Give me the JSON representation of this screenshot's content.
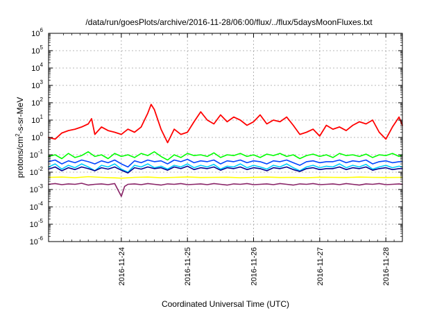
{
  "chart_data": {
    "type": "line",
    "title": "/data/run/goesPlots/archive/2016-11-28/06:00/flux/../flux/5daysMoonFluxes.txt",
    "xlabel": "Coordinated Universal Time (UTC)",
    "ylabel_main": "protons/cm",
    "ylabel_sup": "2",
    "ylabel_tail": "-s-sr-MeV",
    "x_tick_labels": [
      "2016-11-24",
      "2016-11-25",
      "2016-11-26",
      "2016-11-27",
      "2016-11-28"
    ],
    "x_range_days": [
      -1.1,
      4.25
    ],
    "y_scale": "log",
    "y_range": [
      1e-06,
      1000000.0
    ],
    "y_tick_base": "10",
    "y_tick_exponents": [
      "-6",
      "-5",
      "-4",
      "-3",
      "-2",
      "-1",
      "0",
      "1",
      "2",
      "3",
      "4",
      "5",
      "6"
    ],
    "grid": true,
    "series": [
      {
        "color": "#ff0000",
        "x": [
          -1.1,
          -1.0,
          -0.9,
          -0.8,
          -0.7,
          -0.6,
          -0.5,
          -0.45,
          -0.4,
          -0.3,
          -0.2,
          -0.1,
          0,
          0.1,
          0.2,
          0.3,
          0.35,
          0.4,
          0.45,
          0.5,
          0.6,
          0.7,
          0.8,
          0.9,
          1.0,
          1.1,
          1.2,
          1.3,
          1.4,
          1.5,
          1.6,
          1.7,
          1.8,
          1.9,
          2.0,
          2.1,
          2.2,
          2.3,
          2.4,
          2.5,
          2.6,
          2.7,
          2.8,
          2.9,
          3.0,
          3.1,
          3.2,
          3.3,
          3.4,
          3.5,
          3.6,
          3.7,
          3.8,
          3.9,
          4.0,
          4.1,
          4.2,
          4.25
        ],
        "values": [
          1.0,
          0.8,
          1.8,
          2.5,
          3.0,
          4.0,
          6.0,
          12,
          1.5,
          4.0,
          2.5,
          2.0,
          1.5,
          3.0,
          2.0,
          4.0,
          10,
          25,
          80,
          40,
          3.0,
          0.5,
          3.0,
          1.5,
          2.0,
          8.0,
          30,
          10,
          6.0,
          20,
          8.0,
          15,
          10,
          5.0,
          8.0,
          20,
          6.0,
          10,
          8.0,
          15,
          5.0,
          1.5,
          2.0,
          3.0,
          1.2,
          5.0,
          3.0,
          4.0,
          2.5,
          5.0,
          8.0,
          6.0,
          10,
          2.0,
          0.8,
          4.0,
          15,
          5.0
        ]
      },
      {
        "color": "#00ff00",
        "x": [
          -1.1,
          -1.0,
          -0.9,
          -0.8,
          -0.7,
          -0.6,
          -0.5,
          -0.4,
          -0.3,
          -0.2,
          -0.1,
          0,
          0.1,
          0.2,
          0.3,
          0.4,
          0.5,
          0.6,
          0.7,
          0.8,
          0.9,
          1.0,
          1.1,
          1.2,
          1.3,
          1.4,
          1.5,
          1.6,
          1.7,
          1.8,
          1.9,
          2.0,
          2.1,
          2.2,
          2.3,
          2.4,
          2.5,
          2.6,
          2.7,
          2.8,
          2.9,
          3.0,
          3.1,
          3.2,
          3.3,
          3.4,
          3.5,
          3.6,
          3.7,
          3.8,
          3.9,
          4.0,
          4.1,
          4.2,
          4.25
        ],
        "values": [
          0.08,
          0.1,
          0.06,
          0.12,
          0.07,
          0.09,
          0.15,
          0.08,
          0.1,
          0.06,
          0.12,
          0.08,
          0.1,
          0.07,
          0.12,
          0.09,
          0.15,
          0.08,
          0.05,
          0.1,
          0.07,
          0.12,
          0.09,
          0.1,
          0.08,
          0.13,
          0.07,
          0.1,
          0.09,
          0.12,
          0.08,
          0.1,
          0.07,
          0.11,
          0.09,
          0.12,
          0.08,
          0.1,
          0.06,
          0.09,
          0.11,
          0.08,
          0.1,
          0.07,
          0.12,
          0.09,
          0.1,
          0.08,
          0.11,
          0.07,
          0.1,
          0.09,
          0.12,
          0.08,
          0.1
        ]
      },
      {
        "color": "#00ccff",
        "x": [
          -1.1,
          -1.0,
          -0.9,
          -0.8,
          -0.7,
          -0.6,
          -0.5,
          -0.4,
          -0.3,
          -0.2,
          -0.1,
          0,
          0.1,
          0.2,
          0.3,
          0.4,
          0.5,
          0.6,
          0.7,
          0.8,
          0.9,
          1.0,
          1.1,
          1.2,
          1.3,
          1.4,
          1.5,
          1.6,
          1.7,
          1.8,
          1.9,
          2.0,
          2.1,
          2.2,
          2.3,
          2.4,
          2.5,
          2.6,
          2.7,
          2.8,
          2.9,
          3.0,
          3.1,
          3.2,
          3.3,
          3.4,
          3.5,
          3.6,
          3.7,
          3.8,
          3.9,
          4.0,
          4.1,
          4.2,
          4.25
        ],
        "values": [
          0.02,
          0.03,
          0.015,
          0.025,
          0.018,
          0.03,
          0.02,
          0.012,
          0.025,
          0.02,
          0.03,
          0.015,
          0.01,
          0.025,
          0.02,
          0.03,
          0.018,
          0.022,
          0.015,
          0.025,
          0.02,
          0.03,
          0.018,
          0.025,
          0.02,
          0.028,
          0.015,
          0.022,
          0.02,
          0.03,
          0.018,
          0.025,
          0.02,
          0.015,
          0.025,
          0.02,
          0.03,
          0.018,
          0.012,
          0.02,
          0.025,
          0.018,
          0.022,
          0.02,
          0.03,
          0.018,
          0.025,
          0.02,
          0.028,
          0.015,
          0.02,
          0.025,
          0.018,
          0.022,
          0.02
        ]
      },
      {
        "color": "#0044ff",
        "x": [
          -1.1,
          -1.0,
          -0.9,
          -0.8,
          -0.7,
          -0.6,
          -0.5,
          -0.4,
          -0.3,
          -0.2,
          -0.1,
          0,
          0.1,
          0.2,
          0.3,
          0.4,
          0.5,
          0.6,
          0.7,
          0.8,
          0.9,
          1.0,
          1.1,
          1.2,
          1.3,
          1.4,
          1.5,
          1.6,
          1.7,
          1.8,
          1.9,
          2.0,
          2.1,
          2.2,
          2.3,
          2.4,
          2.5,
          2.6,
          2.7,
          2.8,
          2.9,
          3.0,
          3.1,
          3.2,
          3.3,
          3.4,
          3.5,
          3.6,
          3.7,
          3.8,
          3.9,
          4.0,
          4.1,
          4.2,
          4.25
        ],
        "values": [
          0.04,
          0.05,
          0.03,
          0.045,
          0.035,
          0.05,
          0.04,
          0.03,
          0.045,
          0.035,
          0.05,
          0.03,
          0.02,
          0.045,
          0.035,
          0.05,
          0.04,
          0.045,
          0.03,
          0.05,
          0.04,
          0.055,
          0.035,
          0.045,
          0.04,
          0.05,
          0.03,
          0.045,
          0.04,
          0.05,
          0.035,
          0.045,
          0.04,
          0.03,
          0.045,
          0.04,
          0.05,
          0.035,
          0.025,
          0.04,
          0.045,
          0.035,
          0.04,
          0.04,
          0.05,
          0.035,
          0.045,
          0.04,
          0.05,
          0.03,
          0.04,
          0.045,
          0.035,
          0.04,
          0.04
        ]
      },
      {
        "color": "#000090",
        "x": [
          -1.1,
          -1.0,
          -0.9,
          -0.8,
          -0.7,
          -0.6,
          -0.5,
          -0.4,
          -0.3,
          -0.2,
          -0.1,
          0,
          0.1,
          0.2,
          0.3,
          0.4,
          0.5,
          0.6,
          0.7,
          0.8,
          0.9,
          1.0,
          1.1,
          1.2,
          1.3,
          1.4,
          1.5,
          1.6,
          1.7,
          1.8,
          1.9,
          2.0,
          2.1,
          2.2,
          2.3,
          2.4,
          2.5,
          2.6,
          2.7,
          2.8,
          2.9,
          3.0,
          3.1,
          3.2,
          3.3,
          3.4,
          3.5,
          3.6,
          3.7,
          3.8,
          3.9,
          4.0,
          4.1,
          4.2,
          4.25
        ],
        "values": [
          0.015,
          0.02,
          0.012,
          0.018,
          0.014,
          0.02,
          0.016,
          0.012,
          0.018,
          0.015,
          0.02,
          0.013,
          0.009,
          0.018,
          0.015,
          0.02,
          0.016,
          0.018,
          0.013,
          0.02,
          0.016,
          0.022,
          0.014,
          0.018,
          0.016,
          0.02,
          0.013,
          0.018,
          0.016,
          0.02,
          0.014,
          0.018,
          0.016,
          0.012,
          0.018,
          0.016,
          0.02,
          0.014,
          0.011,
          0.016,
          0.018,
          0.014,
          0.016,
          0.016,
          0.02,
          0.014,
          0.018,
          0.016,
          0.02,
          0.013,
          0.016,
          0.018,
          0.014,
          0.016,
          0.016
        ]
      },
      {
        "color": "#ffff00",
        "x": [
          -1.1,
          -0.9,
          -0.7,
          -0.5,
          -0.3,
          -0.1,
          0,
          0.2,
          0.4,
          0.6,
          0.8,
          1.0,
          1.2,
          1.4,
          1.6,
          1.8,
          2.0,
          2.2,
          2.4,
          2.6,
          2.8,
          3.0,
          3.2,
          3.4,
          3.6,
          3.8,
          4.0,
          4.25
        ],
        "values": [
          0.005,
          0.0052,
          0.0048,
          0.0055,
          0.005,
          0.0047,
          0.0045,
          0.005,
          0.0052,
          0.0048,
          0.005,
          0.0053,
          0.0049,
          0.005,
          0.0051,
          0.0048,
          0.005,
          0.0052,
          0.0049,
          0.005,
          0.0048,
          0.0051,
          0.005,
          0.0049,
          0.0052,
          0.005,
          0.0049,
          0.005
        ]
      },
      {
        "color": "#882266",
        "x": [
          -1.1,
          -1.0,
          -0.9,
          -0.8,
          -0.7,
          -0.6,
          -0.5,
          -0.4,
          -0.3,
          -0.2,
          -0.1,
          0,
          0.05,
          0.1,
          0.2,
          0.3,
          0.4,
          0.5,
          0.6,
          0.7,
          0.8,
          0.9,
          1.0,
          1.1,
          1.2,
          1.3,
          1.4,
          1.5,
          1.6,
          1.7,
          1.8,
          1.9,
          2.0,
          2.1,
          2.2,
          2.3,
          2.4,
          2.5,
          2.6,
          2.7,
          2.8,
          2.9,
          3.0,
          3.1,
          3.2,
          3.3,
          3.4,
          3.5,
          3.6,
          3.7,
          3.8,
          3.9,
          4.0,
          4.1,
          4.2,
          4.25
        ],
        "values": [
          0.002,
          0.0022,
          0.0019,
          0.0021,
          0.002,
          0.0023,
          0.0018,
          0.002,
          0.0021,
          0.0019,
          0.0022,
          0.0004,
          0.0015,
          0.002,
          0.0021,
          0.0019,
          0.0022,
          0.002,
          0.0018,
          0.0021,
          0.002,
          0.0022,
          0.0019,
          0.002,
          0.0021,
          0.0019,
          0.0022,
          0.002,
          0.0018,
          0.0021,
          0.002,
          0.0022,
          0.0019,
          0.002,
          0.0021,
          0.0019,
          0.0022,
          0.002,
          0.0018,
          0.0021,
          0.002,
          0.0022,
          0.0019,
          0.002,
          0.0021,
          0.0019,
          0.0022,
          0.002,
          0.0018,
          0.0021,
          0.002,
          0.0022,
          0.0019,
          0.002,
          0.0021,
          0.002
        ]
      }
    ]
  }
}
